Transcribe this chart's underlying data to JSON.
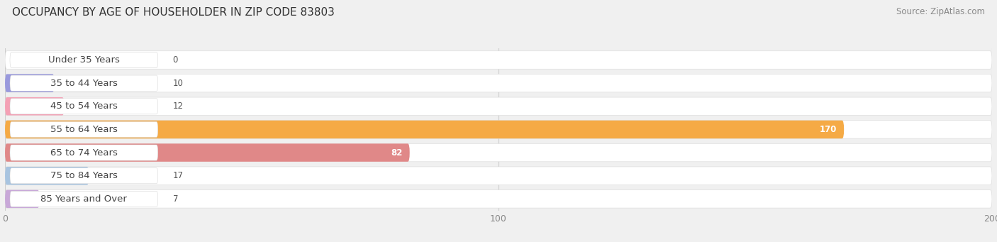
{
  "title": "OCCUPANCY BY AGE OF HOUSEHOLDER IN ZIP CODE 83803",
  "source": "Source: ZipAtlas.com",
  "categories": [
    "Under 35 Years",
    "35 to 44 Years",
    "45 to 54 Years",
    "55 to 64 Years",
    "65 to 74 Years",
    "75 to 84 Years",
    "85 Years and Over"
  ],
  "values": [
    0,
    10,
    12,
    170,
    82,
    17,
    7
  ],
  "bar_colors": [
    "#6ecece",
    "#9999dd",
    "#f4a0b5",
    "#f5aa45",
    "#e08888",
    "#a8c4e0",
    "#c8a8d8"
  ],
  "xlim": [
    0,
    200
  ],
  "xticks": [
    0,
    100,
    200
  ],
  "background_color": "#f0f0f0",
  "bar_bg_color": "#ffffff",
  "title_fontsize": 11,
  "source_fontsize": 8.5,
  "label_fontsize": 9.5,
  "value_fontsize": 8.5
}
